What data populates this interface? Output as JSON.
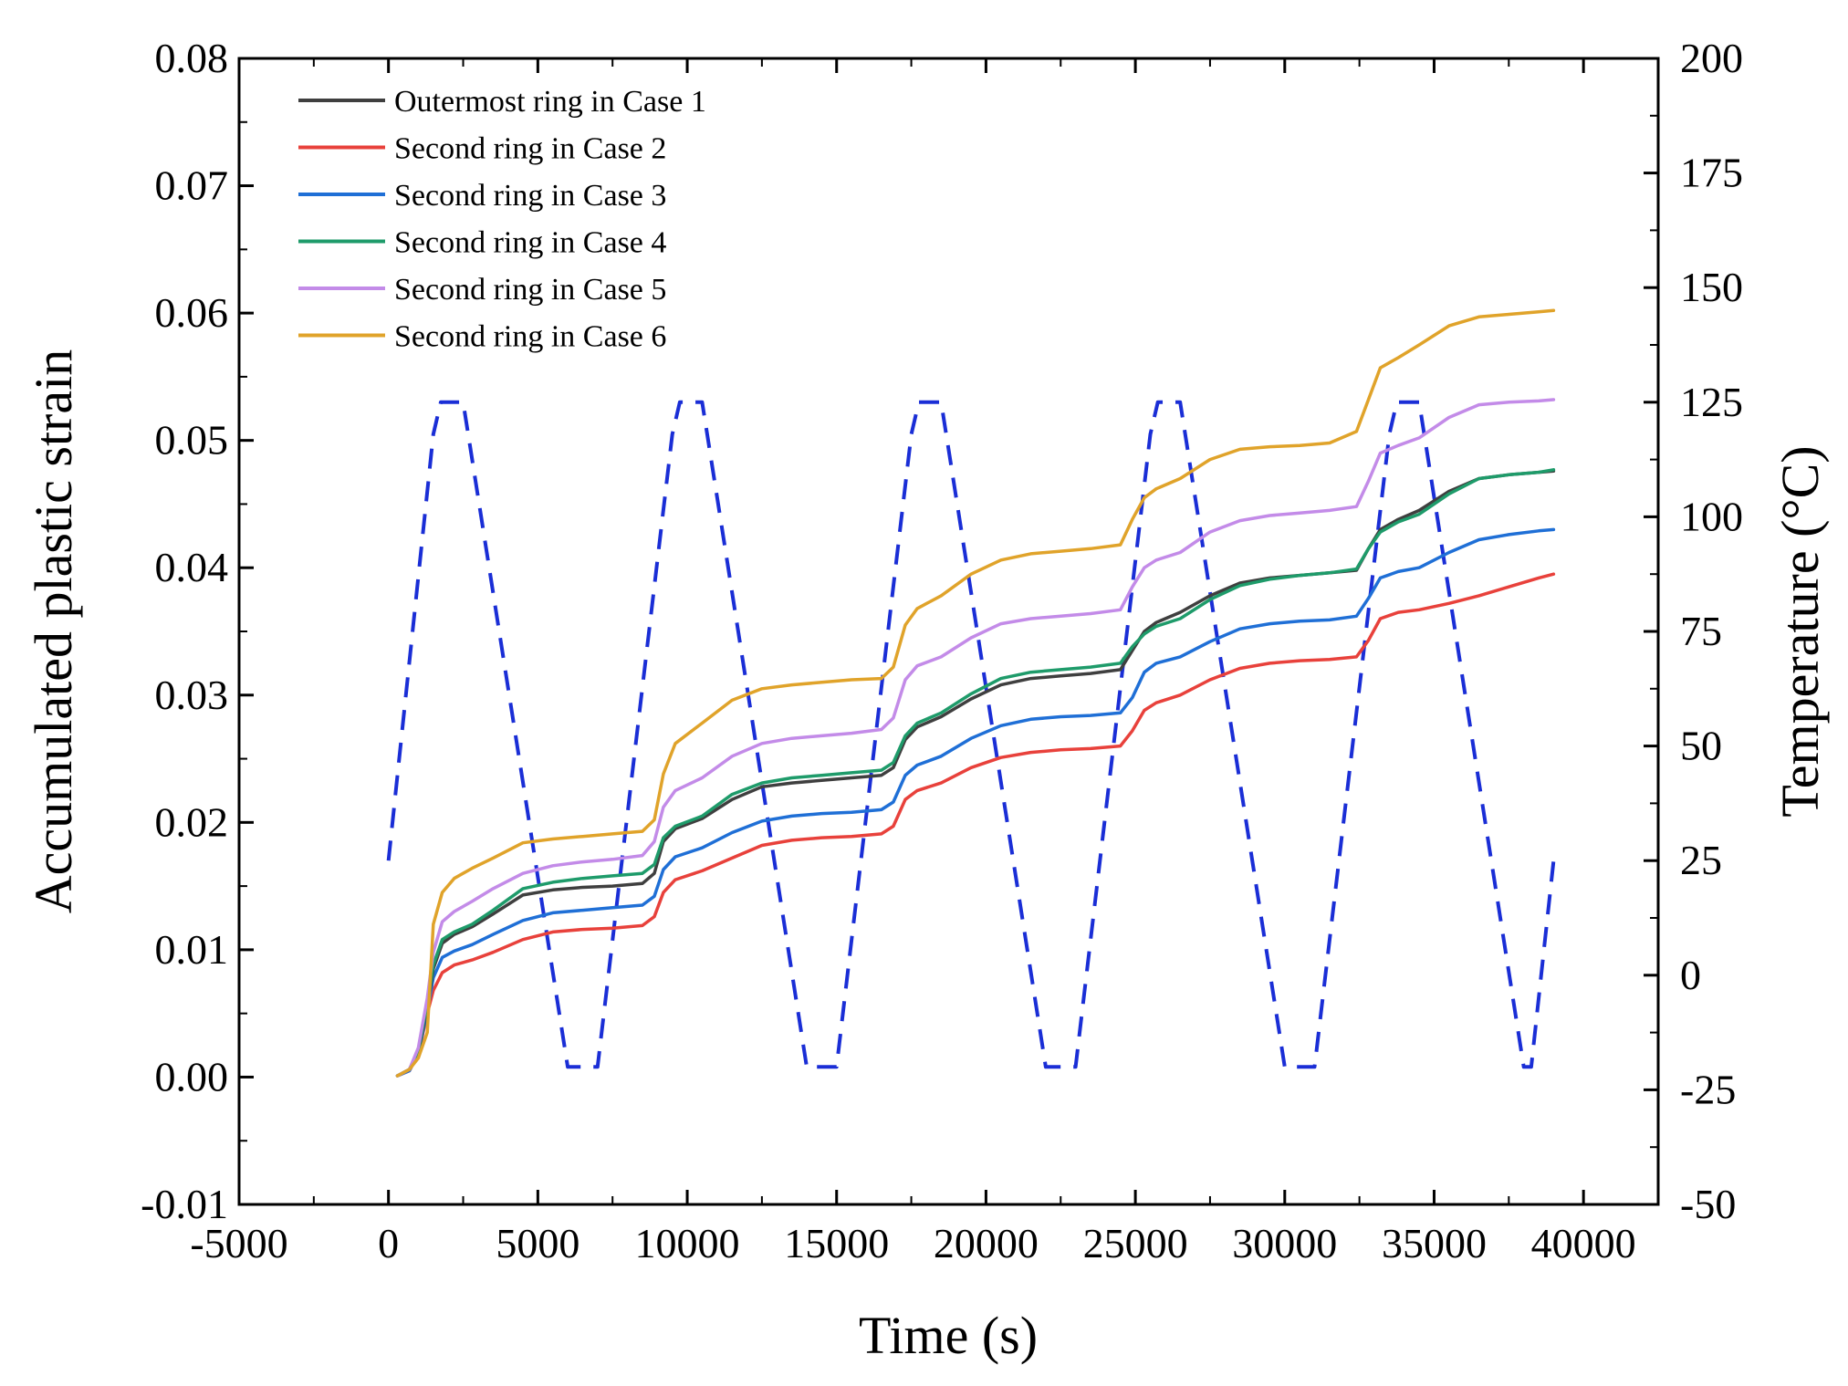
{
  "chart_data": {
    "type": "line",
    "title": "",
    "xlabel": "Time (s)",
    "ylabel": "Accumulated plastic strain",
    "y2label": "Temperature (°C)",
    "xlim": [
      -5000,
      42500
    ],
    "ylim": [
      -0.01,
      0.08
    ],
    "y2lim": [
      -50,
      200
    ],
    "xticks": [
      -5000,
      0,
      5000,
      10000,
      15000,
      20000,
      25000,
      30000,
      35000,
      40000
    ],
    "xtick_labels": [
      "-5000",
      "0",
      "5000",
      "10000",
      "15000",
      "20000",
      "25000",
      "30000",
      "35000",
      "40000"
    ],
    "yticks": [
      -0.01,
      0.0,
      0.01,
      0.02,
      0.03,
      0.04,
      0.05,
      0.06,
      0.07,
      0.08
    ],
    "ytick_labels": [
      "-0.01",
      "0.00",
      "0.01",
      "0.02",
      "0.03",
      "0.04",
      "0.05",
      "0.06",
      "0.07",
      "0.08"
    ],
    "y2ticks": [
      -50,
      -25,
      0,
      25,
      50,
      75,
      100,
      125,
      150,
      175,
      200
    ],
    "y2tick_labels": [
      "-50",
      "-25",
      "0",
      "25",
      "50",
      "75",
      "100",
      "125",
      "150",
      "175",
      "200"
    ],
    "legend_position": "top-left",
    "series": [
      {
        "name": "Outermost ring in Case 1",
        "color": "#3f3f3f",
        "x": [
          300,
          700,
          1000,
          1300,
          1500,
          1800,
          2200,
          2800,
          3500,
          4500,
          5500,
          6500,
          7500,
          8500,
          8900,
          9200,
          9600,
          10500,
          11500,
          12500,
          13500,
          14500,
          15500,
          16500,
          16900,
          17300,
          17700,
          18500,
          19500,
          20500,
          21500,
          22500,
          23500,
          24500,
          24900,
          25300,
          25700,
          26500,
          27500,
          28500,
          29500,
          30500,
          31500,
          32400,
          32800,
          33200,
          33800,
          34500,
          35500,
          36500,
          37500,
          38500,
          39000
        ],
        "values": [
          0.0001,
          0.0006,
          0.002,
          0.0055,
          0.0085,
          0.0105,
          0.0112,
          0.0118,
          0.0128,
          0.0143,
          0.0147,
          0.0149,
          0.015,
          0.0152,
          0.016,
          0.0185,
          0.0195,
          0.0203,
          0.0218,
          0.0228,
          0.0231,
          0.0233,
          0.0235,
          0.0237,
          0.0243,
          0.0265,
          0.0275,
          0.0283,
          0.0297,
          0.0308,
          0.0313,
          0.0315,
          0.0317,
          0.032,
          0.0335,
          0.035,
          0.0357,
          0.0365,
          0.0378,
          0.0388,
          0.0392,
          0.0394,
          0.0396,
          0.0398,
          0.0415,
          0.043,
          0.0438,
          0.0445,
          0.046,
          0.047,
          0.0473,
          0.0475,
          0.0476
        ]
      },
      {
        "name": "Second ring in Case 2",
        "color": "#e8413b",
        "x": [
          300,
          700,
          1000,
          1300,
          1500,
          1800,
          2200,
          2800,
          3500,
          4500,
          5500,
          6500,
          7500,
          8500,
          8900,
          9200,
          9600,
          10500,
          11500,
          12500,
          13500,
          14500,
          15500,
          16500,
          16900,
          17300,
          17700,
          18500,
          19500,
          20500,
          21500,
          22500,
          23500,
          24500,
          24900,
          25300,
          25700,
          26500,
          27500,
          28500,
          29500,
          30500,
          31500,
          32400,
          32800,
          33200,
          33800,
          34500,
          35500,
          36500,
          37500,
          38500,
          39000
        ],
        "values": [
          0.0001,
          0.0005,
          0.0018,
          0.005,
          0.0068,
          0.0082,
          0.0088,
          0.0092,
          0.0098,
          0.0108,
          0.0114,
          0.0116,
          0.0117,
          0.0119,
          0.0126,
          0.0145,
          0.0155,
          0.0162,
          0.0172,
          0.0182,
          0.0186,
          0.0188,
          0.0189,
          0.0191,
          0.0197,
          0.0218,
          0.0225,
          0.0231,
          0.0243,
          0.0251,
          0.0255,
          0.0257,
          0.0258,
          0.026,
          0.0272,
          0.0288,
          0.0294,
          0.03,
          0.0312,
          0.0321,
          0.0325,
          0.0327,
          0.0328,
          0.033,
          0.0343,
          0.036,
          0.0365,
          0.0367,
          0.0372,
          0.0378,
          0.0385,
          0.0392,
          0.0395
        ]
      },
      {
        "name": "Second ring in Case 3",
        "color": "#1f6fd6",
        "x": [
          300,
          700,
          1000,
          1300,
          1500,
          1800,
          2200,
          2800,
          3500,
          4500,
          5500,
          6500,
          7500,
          8500,
          8900,
          9200,
          9600,
          10500,
          11500,
          12500,
          13500,
          14500,
          15500,
          16500,
          16900,
          17300,
          17700,
          18500,
          19500,
          20500,
          21500,
          22500,
          23500,
          24500,
          24900,
          25300,
          25700,
          26500,
          27500,
          28500,
          29500,
          30500,
          31500,
          32400,
          32800,
          33200,
          33800,
          34500,
          35500,
          36500,
          37500,
          38500,
          39000
        ],
        "values": [
          0.0001,
          0.0005,
          0.0019,
          0.0052,
          0.0078,
          0.0094,
          0.0099,
          0.0104,
          0.0112,
          0.0123,
          0.0129,
          0.0131,
          0.0133,
          0.0135,
          0.0142,
          0.0163,
          0.0173,
          0.018,
          0.0192,
          0.0201,
          0.0205,
          0.0207,
          0.0208,
          0.021,
          0.0216,
          0.0237,
          0.0245,
          0.0252,
          0.0266,
          0.0276,
          0.0281,
          0.0283,
          0.0284,
          0.0286,
          0.0298,
          0.0318,
          0.0325,
          0.033,
          0.0342,
          0.0352,
          0.0356,
          0.0358,
          0.0359,
          0.0362,
          0.0376,
          0.0392,
          0.0397,
          0.04,
          0.0412,
          0.0422,
          0.0426,
          0.0429,
          0.043
        ]
      },
      {
        "name": "Second ring in Case 4",
        "color": "#1e9b6a",
        "x": [
          300,
          700,
          1000,
          1300,
          1500,
          1800,
          2200,
          2800,
          3500,
          4500,
          5500,
          6500,
          7500,
          8500,
          8900,
          9200,
          9600,
          10500,
          11500,
          12500,
          13500,
          14500,
          15500,
          16500,
          16900,
          17300,
          17700,
          18500,
          19500,
          20500,
          21500,
          22500,
          23500,
          24500,
          24900,
          25300,
          25700,
          26500,
          27500,
          28500,
          29500,
          30500,
          31500,
          32400,
          32800,
          33200,
          33800,
          34500,
          35500,
          36500,
          37500,
          38500,
          39000
        ],
        "values": [
          0.0001,
          0.0006,
          0.0021,
          0.0058,
          0.0088,
          0.0108,
          0.0114,
          0.012,
          0.0131,
          0.0148,
          0.0153,
          0.0156,
          0.0158,
          0.016,
          0.0167,
          0.0188,
          0.0197,
          0.0205,
          0.0222,
          0.0231,
          0.0235,
          0.0237,
          0.0239,
          0.0241,
          0.0247,
          0.0268,
          0.0278,
          0.0286,
          0.0301,
          0.0313,
          0.0318,
          0.032,
          0.0322,
          0.0325,
          0.0338,
          0.0348,
          0.0354,
          0.036,
          0.0375,
          0.0386,
          0.0391,
          0.0394,
          0.0396,
          0.0399,
          0.0415,
          0.0428,
          0.0436,
          0.0442,
          0.0458,
          0.047,
          0.0473,
          0.0475,
          0.0477
        ]
      },
      {
        "name": "Second ring in Case 5",
        "color": "#c38be8",
        "x": [
          300,
          700,
          1000,
          1300,
          1500,
          1800,
          2200,
          2800,
          3500,
          4500,
          5500,
          6500,
          7500,
          8500,
          8900,
          9200,
          9600,
          10500,
          11500,
          12500,
          13500,
          14500,
          15500,
          16500,
          16900,
          17300,
          17700,
          18500,
          19500,
          20500,
          21500,
          22500,
          23500,
          24500,
          24900,
          25300,
          25700,
          26500,
          27500,
          28500,
          29500,
          30500,
          31500,
          32400,
          32800,
          33200,
          33800,
          34500,
          35500,
          36500,
          37500,
          38500,
          39000
        ],
        "values": [
          0.0001,
          0.0006,
          0.0023,
          0.0062,
          0.0098,
          0.0122,
          0.013,
          0.0138,
          0.0148,
          0.016,
          0.0166,
          0.0169,
          0.0171,
          0.0174,
          0.0185,
          0.0212,
          0.0225,
          0.0235,
          0.0252,
          0.0262,
          0.0266,
          0.0268,
          0.027,
          0.0273,
          0.0282,
          0.0312,
          0.0323,
          0.033,
          0.0345,
          0.0356,
          0.036,
          0.0362,
          0.0364,
          0.0367,
          0.0385,
          0.04,
          0.0406,
          0.0412,
          0.0428,
          0.0437,
          0.0441,
          0.0443,
          0.0445,
          0.0448,
          0.0468,
          0.049,
          0.0496,
          0.0502,
          0.0518,
          0.0528,
          0.053,
          0.0531,
          0.0532
        ]
      },
      {
        "name": "Second ring in Case 6",
        "color": "#e0a32a",
        "x": [
          300,
          700,
          1000,
          1300,
          1500,
          1800,
          2200,
          2800,
          3500,
          4500,
          5500,
          6500,
          7500,
          8500,
          8900,
          9200,
          9600,
          10500,
          11500,
          12500,
          13500,
          14500,
          15500,
          16500,
          16900,
          17300,
          17700,
          18500,
          19500,
          20500,
          21500,
          22500,
          23500,
          24500,
          24900,
          25300,
          25700,
          26500,
          27500,
          28500,
          29500,
          30500,
          31500,
          32400,
          32800,
          33200,
          33800,
          34500,
          35500,
          36500,
          37500,
          38500,
          39000
        ],
        "values": [
          0.0001,
          0.0006,
          0.0015,
          0.0035,
          0.012,
          0.0145,
          0.0156,
          0.0164,
          0.0172,
          0.0184,
          0.0187,
          0.0189,
          0.0191,
          0.0193,
          0.0202,
          0.0238,
          0.0262,
          0.0278,
          0.0296,
          0.0305,
          0.0308,
          0.031,
          0.0312,
          0.0313,
          0.0322,
          0.0355,
          0.0368,
          0.0378,
          0.0395,
          0.0406,
          0.0411,
          0.0413,
          0.0415,
          0.0418,
          0.0438,
          0.0455,
          0.0462,
          0.047,
          0.0485,
          0.0493,
          0.0495,
          0.0496,
          0.0498,
          0.0507,
          0.0532,
          0.0557,
          0.0565,
          0.0575,
          0.059,
          0.0597,
          0.0599,
          0.0601,
          0.0602
        ]
      },
      {
        "name": "Temperature",
        "color": "#1a2ed6",
        "dashed": true,
        "axis": "right",
        "x": [
          0,
          1500,
          1750,
          2500,
          6000,
          6250,
          7000,
          9500,
          9750,
          10500,
          14000,
          14250,
          15000,
          17500,
          17750,
          18500,
          22000,
          22250,
          23000,
          25500,
          25750,
          26500,
          30000,
          30250,
          31000,
          33500,
          33750,
          34500,
          38000,
          38250,
          39000
        ],
        "values": [
          25,
          118,
          125,
          125,
          -20,
          -20,
          -20,
          118,
          125,
          125,
          -20,
          -20,
          -20,
          118,
          125,
          125,
          -20,
          -20,
          -20,
          118,
          125,
          125,
          -20,
          -20,
          -20,
          118,
          125,
          125,
          -20,
          -20,
          25
        ]
      }
    ]
  }
}
